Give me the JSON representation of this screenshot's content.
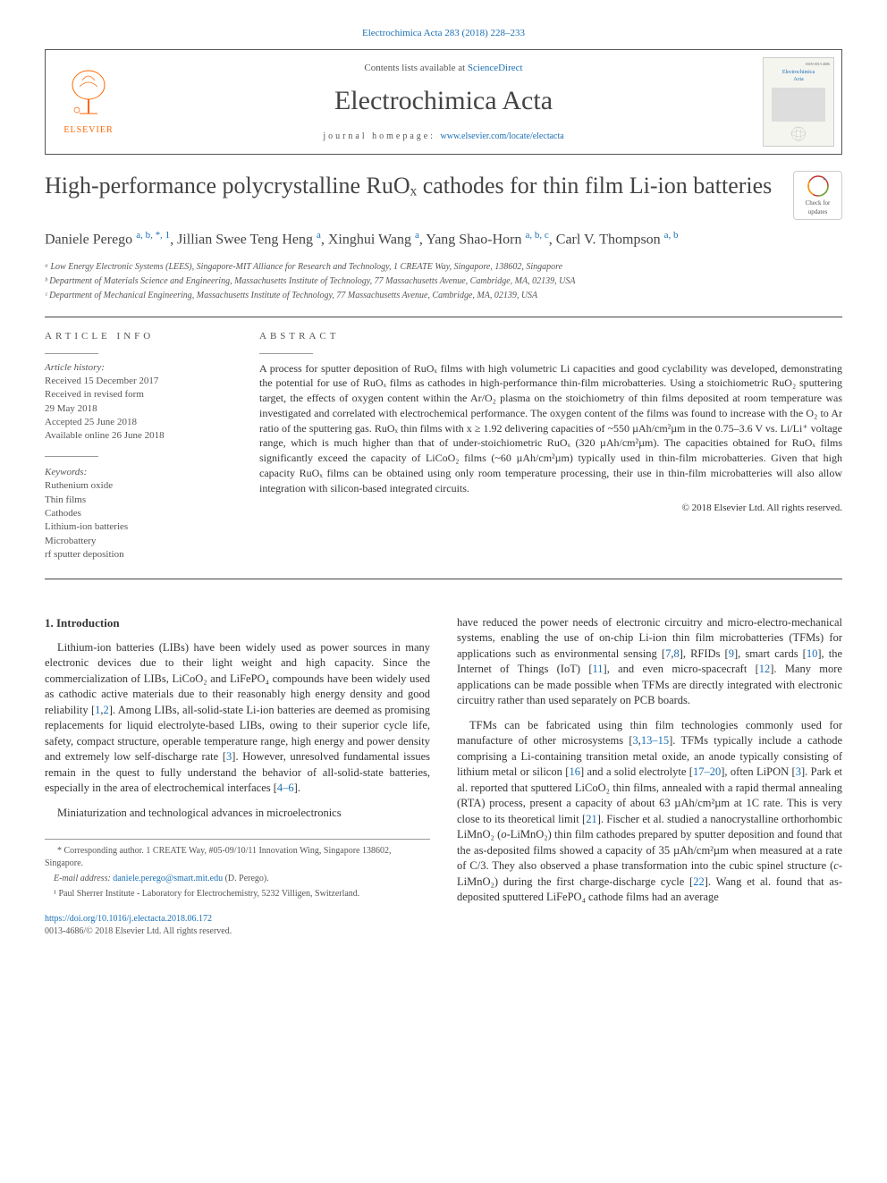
{
  "citation": "Electrochimica Acta 283 (2018) 228–233",
  "header": {
    "contents_prefix": "Contents lists available at ",
    "contents_link": "ScienceDirect",
    "journal": "Electrochimica Acta",
    "homepage_prefix": "journal homepage: ",
    "homepage_url": "www.elsevier.com/locate/electacta",
    "elsevier_brand": "ELSEVIER"
  },
  "cover_thumb": {
    "line1": "Electrochimica",
    "line2": "Acta"
  },
  "updates_badge": {
    "line1": "Check for",
    "line2": "updates"
  },
  "title": "High-performance polycrystalline RuOₓ cathodes for thin film Li-ion batteries",
  "authors_html": "Daniele Perego <sup class='aff'>a, b, *, 1</sup>, Jillian Swee Teng Heng <sup class='aff'>a</sup>, Xinghui Wang <sup class='aff'>a</sup>, Yang Shao-Horn <sup class='aff'>a, b, c</sup>, Carl V. Thompson <sup class='aff'>a, b</sup>",
  "affiliations": [
    "ᵃ Low Energy Electronic Systems (LEES), Singapore-MIT Alliance for Research and Technology, 1 CREATE Way, Singapore, 138602, Singapore",
    "ᵇ Department of Materials Science and Engineering, Massachusetts Institute of Technology, 77 Massachusetts Avenue, Cambridge, MA, 02139, USA",
    "ᶜ Department of Mechanical Engineering, Massachusetts Institute of Technology, 77 Massachusetts Avenue, Cambridge, MA, 02139, USA"
  ],
  "info": {
    "heading": "ARTICLE INFO",
    "history_label": "Article history:",
    "history": [
      "Received 15 December 2017",
      "Received in revised form",
      "29 May 2018",
      "Accepted 25 June 2018",
      "Available online 26 June 2018"
    ],
    "keywords_label": "Keywords:",
    "keywords": [
      "Ruthenium oxide",
      "Thin films",
      "Cathodes",
      "Lithium-ion batteries",
      "Microbattery",
      "rf sputter deposition"
    ]
  },
  "abstract": {
    "heading": "ABSTRACT",
    "text": "A process for sputter deposition of RuOₓ films with high volumetric Li capacities and good cyclability was developed, demonstrating the potential for use of RuOₓ films as cathodes in high-performance thin-film microbatteries. Using a stoichiometric RuO₂ sputtering target, the effects of oxygen content within the Ar/O₂ plasma on the stoichiometry of thin films deposited at room temperature was investigated and correlated with electrochemical performance. The oxygen content of the films was found to increase with the O₂ to Ar ratio of the sputtering gas. RuOₓ thin films with x ≥ 1.92 delivering capacities of ~550 µAh/cm²µm in the 0.75–3.6 V vs. Li/Li⁺ voltage range, which is much higher than that of under-stoichiometric RuOₓ (320 µAh/cm²µm). The capacities obtained for RuOₓ films significantly exceed the capacity of LiCoO₂ films (~60 µAh/cm²µm) typically used in thin-film microbatteries. Given that high capacity RuOₓ films can be obtained using only room temperature processing, their use in thin-film microbatteries will also allow integration with silicon-based integrated circuits.",
    "copyright": "© 2018 Elsevier Ltd. All rights reserved."
  },
  "section1": {
    "heading": "1. Introduction",
    "p1_html": "Lithium-ion batteries (LIBs) have been widely used as power sources in many electronic devices due to their light weight and high capacity. Since the commercialization of LIBs, LiCoO₂ and LiFePO₄ compounds have been widely used as cathodic active materials due to their reasonably high energy density and good reliability [<a href='#'>1</a>,<a href='#'>2</a>]. Among LIBs, all-solid-state Li-ion batteries are deemed as promising replacements for liquid electrolyte-based LIBs, owing to their superior cycle life, safety, compact structure, operable temperature range, high energy and power density and extremely low self-discharge rate [<a href='#'>3</a>]. However, unresolved fundamental issues remain in the quest to fully understand the behavior of all-solid-state batteries, especially in the area of electrochemical interfaces [<a href='#'>4–6</a>].",
    "p2": "Miniaturization and technological advances in microelectronics",
    "p3_html": "have reduced the power needs of electronic circuitry and micro-electro-mechanical systems, enabling the use of on-chip Li-ion thin film microbatteries (TFMs) for applications such as environmental sensing [<a href='#'>7</a>,<a href='#'>8</a>], RFIDs [<a href='#'>9</a>], smart cards [<a href='#'>10</a>], the Internet of Things (IoT) [<a href='#'>11</a>], and even micro-spacecraft [<a href='#'>12</a>]. Many more applications can be made possible when TFMs are directly integrated with electronic circuitry rather than used separately on PCB boards.",
    "p4_html": "TFMs can be fabricated using thin film technologies commonly used for manufacture of other microsystems [<a href='#'>3</a>,<a href='#'>13–15</a>]. TFMs typically include a cathode comprising a Li-containing transition metal oxide, an anode typically consisting of lithium metal or silicon [<a href='#'>16</a>] and a solid electrolyte [<a href='#'>17–20</a>], often LiPON [<a href='#'>3</a>]. Park et al. reported that sputtered LiCoO₂ thin films, annealed with a rapid thermal annealing (RTA) process, present a capacity of about 63 µAh/cm²µm at 1C rate. This is very close to its theoretical limit [<a href='#'>21</a>]. Fischer et al. studied a nanocrystalline orthorhombic LiMnO₂ (<i>o</i>-LiMnO₂) thin film cathodes prepared by sputter deposition and found that the as-deposited films showed a capacity of 35 µAh/cm²µm when measured at a rate of C/3. They also observed a phase transformation into the cubic spinel structure (<i>c</i>-LiMnO₂) during the first charge-discharge cycle [<a href='#'>22</a>]. Wang et al. found that as-deposited sputtered LiFePO₄ cathode films had an average"
  },
  "footnotes": {
    "corr": "* Corresponding author. 1 CREATE Way, #05-09/10/11 Innovation Wing, Singapore 138602, Singapore.",
    "email_label": "E-mail address: ",
    "email": "daniele.perego@smart.mit.edu",
    "email_suffix": " (D. Perego).",
    "note1": "¹ Paul Sherrer Institute - Laboratory for Electrochemistry, 5232 Villigen, Switzerland."
  },
  "doi": {
    "url": "https://doi.org/10.1016/j.electacta.2018.06.172",
    "issn": "0013-4686/© 2018 Elsevier Ltd. All rights reserved."
  },
  "colors": {
    "link": "#1a6fb5",
    "text": "#333333",
    "muted": "#555555",
    "rule": "#444444",
    "orange": "#ff6600"
  },
  "typography": {
    "body_fontsize": 13,
    "title_fontsize": 26,
    "journal_fontsize": 30,
    "info_fontsize": 11,
    "abstract_fontsize": 12
  }
}
